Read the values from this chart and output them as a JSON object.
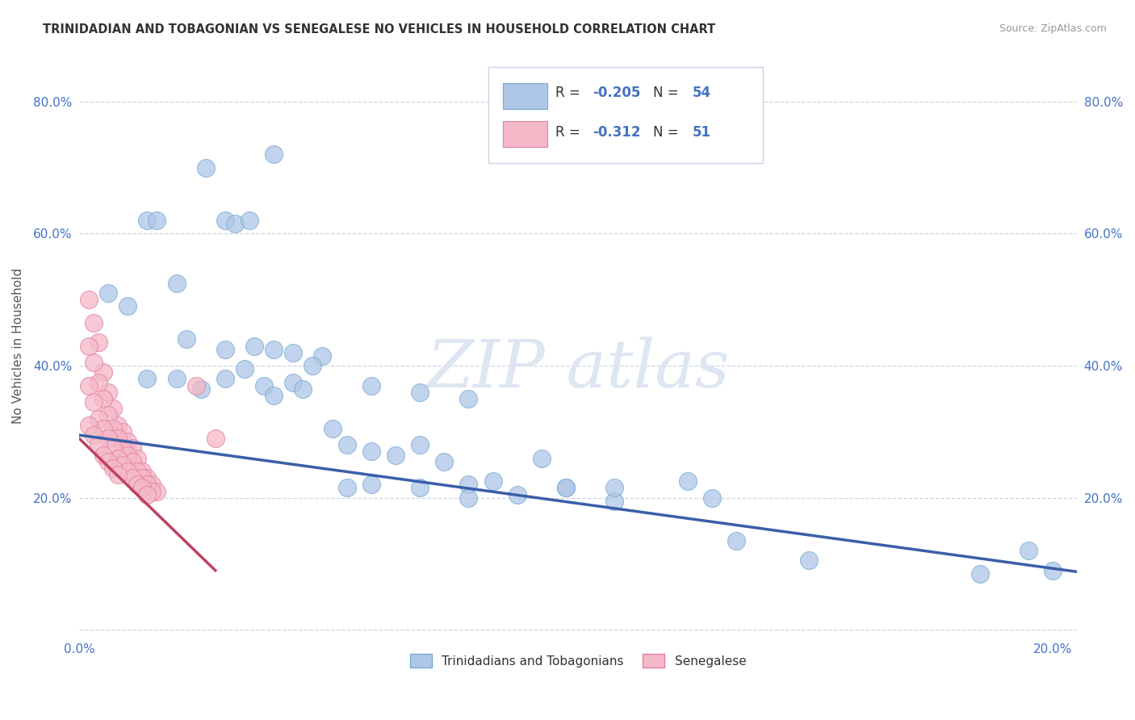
{
  "title": "TRINIDADIAN AND TOBAGONIAN VS SENEGALESE NO VEHICLES IN HOUSEHOLD CORRELATION CHART",
  "source": "Source: ZipAtlas.com",
  "ylabel": "No Vehicles in Household",
  "xlim": [
    0.0,
    0.205
  ],
  "ylim": [
    -0.01,
    0.87
  ],
  "yticks": [
    0.0,
    0.2,
    0.4,
    0.6,
    0.8
  ],
  "xticks": [
    0.0,
    0.05,
    0.1,
    0.15,
    0.2
  ],
  "series1_color": "#aec6e8",
  "series1_edge": "#7aaad0",
  "series2_color": "#f5b8c8",
  "series2_edge": "#e080a0",
  "trendline1_color": "#3a5ea8",
  "trendline2_color": "#c04060",
  "watermark_color": "#dde6f2",
  "r1": "-0.205",
  "n1": "54",
  "r2": "-0.312",
  "n2": "51",
  "legend_box_color": "#f0f4fa",
  "legend_edge_color": "#c8d4e8",
  "tri_x": [
    0.006,
    0.01,
    0.014,
    0.016,
    0.02,
    0.022,
    0.026,
    0.03,
    0.032,
    0.035,
    0.04,
    0.014,
    0.02,
    0.025,
    0.03,
    0.034,
    0.038,
    0.04,
    0.044,
    0.046,
    0.05,
    0.03,
    0.036,
    0.04,
    0.044,
    0.048,
    0.052,
    0.055,
    0.06,
    0.065,
    0.07,
    0.075,
    0.08,
    0.085,
    0.09,
    0.1,
    0.11,
    0.13,
    0.06,
    0.07,
    0.08,
    0.095,
    0.11,
    0.125,
    0.055,
    0.06,
    0.07,
    0.08,
    0.1,
    0.135,
    0.15,
    0.185,
    0.195,
    0.2
  ],
  "tri_y": [
    0.51,
    0.49,
    0.62,
    0.62,
    0.525,
    0.44,
    0.7,
    0.62,
    0.615,
    0.62,
    0.72,
    0.38,
    0.38,
    0.365,
    0.38,
    0.395,
    0.37,
    0.355,
    0.375,
    0.365,
    0.415,
    0.425,
    0.43,
    0.425,
    0.42,
    0.4,
    0.305,
    0.28,
    0.27,
    0.265,
    0.28,
    0.255,
    0.22,
    0.225,
    0.205,
    0.215,
    0.195,
    0.2,
    0.37,
    0.36,
    0.35,
    0.26,
    0.215,
    0.225,
    0.215,
    0.22,
    0.215,
    0.2,
    0.215,
    0.135,
    0.105,
    0.085,
    0.12,
    0.09
  ],
  "sen_x": [
    0.002,
    0.003,
    0.004,
    0.005,
    0.006,
    0.007,
    0.008,
    0.009,
    0.01,
    0.011,
    0.012,
    0.013,
    0.014,
    0.015,
    0.016,
    0.002,
    0.003,
    0.004,
    0.005,
    0.006,
    0.007,
    0.008,
    0.009,
    0.01,
    0.011,
    0.012,
    0.013,
    0.014,
    0.015,
    0.002,
    0.003,
    0.004,
    0.005,
    0.006,
    0.007,
    0.008,
    0.009,
    0.01,
    0.011,
    0.012,
    0.013,
    0.014,
    0.002,
    0.003,
    0.004,
    0.005,
    0.006,
    0.007,
    0.008,
    0.024,
    0.028
  ],
  "sen_y": [
    0.5,
    0.465,
    0.435,
    0.39,
    0.36,
    0.335,
    0.31,
    0.3,
    0.285,
    0.275,
    0.26,
    0.24,
    0.23,
    0.22,
    0.21,
    0.43,
    0.405,
    0.375,
    0.35,
    0.325,
    0.305,
    0.29,
    0.275,
    0.265,
    0.255,
    0.24,
    0.23,
    0.22,
    0.21,
    0.37,
    0.345,
    0.32,
    0.305,
    0.29,
    0.275,
    0.26,
    0.25,
    0.24,
    0.23,
    0.22,
    0.215,
    0.205,
    0.31,
    0.295,
    0.28,
    0.265,
    0.255,
    0.245,
    0.235,
    0.37,
    0.29
  ],
  "tri_trend_x": [
    0.0,
    0.205
  ],
  "tri_trend_y": [
    0.295,
    0.088
  ],
  "sen_trend_x": [
    0.0,
    0.028
  ],
  "sen_trend_y": [
    0.29,
    0.09
  ]
}
